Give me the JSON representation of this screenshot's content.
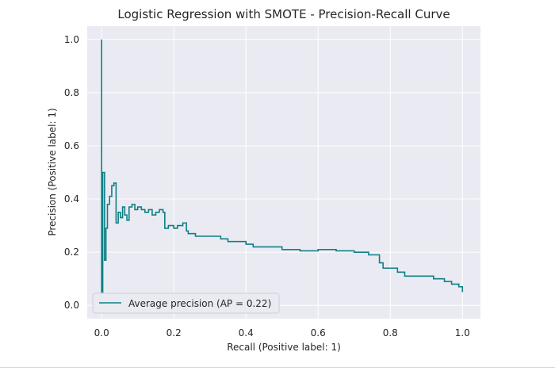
{
  "chart_data": {
    "type": "line",
    "title": "Logistic Regression with SMOTE - Precision-Recall Curve",
    "xlabel": "Recall (Positive label: 1)",
    "ylabel": "Precision (Positive label: 1)",
    "xlim": [
      -0.04,
      1.05
    ],
    "ylim": [
      -0.05,
      1.05
    ],
    "x_ticks": [
      "0.0",
      "0.2",
      "0.4",
      "0.6",
      "0.8",
      "1.0"
    ],
    "y_ticks": [
      "0.0",
      "0.2",
      "0.4",
      "0.6",
      "0.8",
      "1.0"
    ],
    "grid": true,
    "step": "post",
    "legend_position": "lower-left",
    "series": [
      {
        "name": "Average precision (AP = 0.22)",
        "color": "#0f7f86",
        "points": [
          [
            0.0,
            1.0
          ],
          [
            0.0,
            0.05
          ],
          [
            0.003,
            0.5
          ],
          [
            0.008,
            0.17
          ],
          [
            0.012,
            0.29
          ],
          [
            0.016,
            0.38
          ],
          [
            0.022,
            0.41
          ],
          [
            0.028,
            0.45
          ],
          [
            0.034,
            0.46
          ],
          [
            0.04,
            0.31
          ],
          [
            0.046,
            0.35
          ],
          [
            0.052,
            0.33
          ],
          [
            0.058,
            0.37
          ],
          [
            0.064,
            0.34
          ],
          [
            0.07,
            0.32
          ],
          [
            0.076,
            0.37
          ],
          [
            0.084,
            0.38
          ],
          [
            0.092,
            0.36
          ],
          [
            0.1,
            0.37
          ],
          [
            0.11,
            0.36
          ],
          [
            0.12,
            0.35
          ],
          [
            0.13,
            0.36
          ],
          [
            0.14,
            0.34
          ],
          [
            0.15,
            0.35
          ],
          [
            0.16,
            0.36
          ],
          [
            0.17,
            0.35
          ],
          [
            0.175,
            0.29
          ],
          [
            0.185,
            0.3
          ],
          [
            0.2,
            0.29
          ],
          [
            0.21,
            0.3
          ],
          [
            0.225,
            0.31
          ],
          [
            0.235,
            0.28
          ],
          [
            0.24,
            0.27
          ],
          [
            0.26,
            0.26
          ],
          [
            0.3,
            0.26
          ],
          [
            0.33,
            0.25
          ],
          [
            0.35,
            0.24
          ],
          [
            0.4,
            0.23
          ],
          [
            0.42,
            0.22
          ],
          [
            0.45,
            0.22
          ],
          [
            0.5,
            0.21
          ],
          [
            0.55,
            0.205
          ],
          [
            0.6,
            0.21
          ],
          [
            0.65,
            0.205
          ],
          [
            0.7,
            0.2
          ],
          [
            0.74,
            0.19
          ],
          [
            0.77,
            0.16
          ],
          [
            0.78,
            0.14
          ],
          [
            0.82,
            0.125
          ],
          [
            0.84,
            0.11
          ],
          [
            0.88,
            0.11
          ],
          [
            0.92,
            0.1
          ],
          [
            0.95,
            0.09
          ],
          [
            0.97,
            0.08
          ],
          [
            0.99,
            0.07
          ],
          [
            1.0,
            0.05
          ]
        ]
      }
    ]
  }
}
